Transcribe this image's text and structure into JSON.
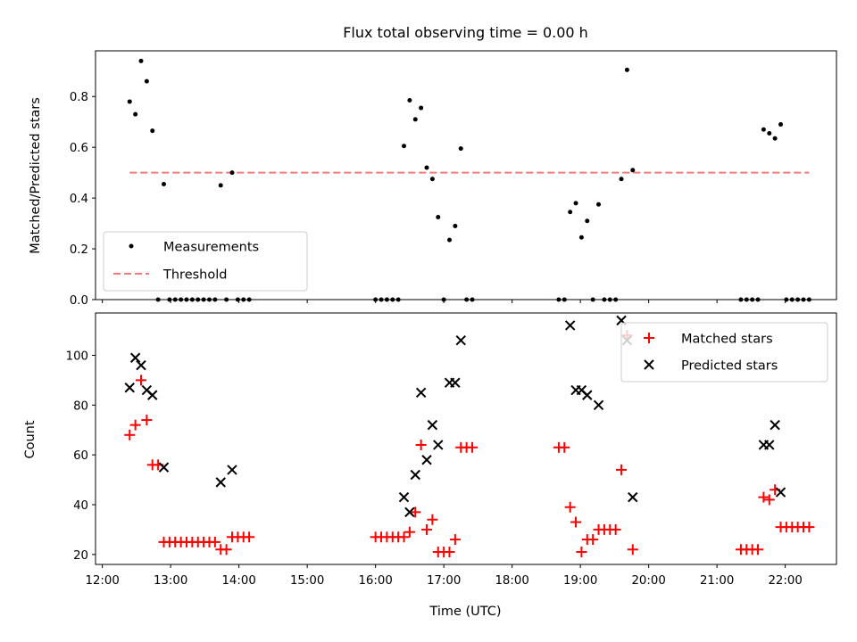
{
  "chart_data": [
    {
      "type": "scatter",
      "title": "Flux total observing time = 0.00 h",
      "xlabel": "",
      "ylabel": "Matched/Predicted stars",
      "xlim": [
        "11:54",
        "22:45"
      ],
      "ylim": [
        0,
        0.98
      ],
      "yticks": [
        0.0,
        0.2,
        0.4,
        0.6,
        0.8
      ],
      "legend_position": "lower-left",
      "series": [
        {
          "name": "Measurements",
          "style": "dot",
          "color": "#000000",
          "points": [
            [
              "12:24",
              0.78
            ],
            [
              "12:29",
              0.73
            ],
            [
              "12:34",
              0.94
            ],
            [
              "12:39",
              0.86
            ],
            [
              "12:44",
              0.665
            ],
            [
              "12:49",
              0.0
            ],
            [
              "12:54",
              0.455
            ],
            [
              "12:59",
              0.0
            ],
            [
              "13:04",
              0.0
            ],
            [
              "13:09",
              0.0
            ],
            [
              "13:14",
              0.0
            ],
            [
              "13:19",
              0.0
            ],
            [
              "13:24",
              0.0
            ],
            [
              "13:29",
              0.0
            ],
            [
              "13:34",
              0.0
            ],
            [
              "13:39",
              0.0
            ],
            [
              "13:44",
              0.45
            ],
            [
              "13:49",
              0.0
            ],
            [
              "13:54",
              0.5
            ],
            [
              "13:59",
              0.0
            ],
            [
              "14:04",
              0.0
            ],
            [
              "14:09",
              0.0
            ],
            [
              "16:00",
              0.0
            ],
            [
              "16:05",
              0.0
            ],
            [
              "16:10",
              0.0
            ],
            [
              "16:15",
              0.0
            ],
            [
              "16:20",
              0.0
            ],
            [
              "16:25",
              0.605
            ],
            [
              "16:30",
              0.785
            ],
            [
              "16:35",
              0.71
            ],
            [
              "16:40",
              0.755
            ],
            [
              "16:45",
              0.52
            ],
            [
              "16:50",
              0.475
            ],
            [
              "16:55",
              0.325
            ],
            [
              "17:00",
              0.0
            ],
            [
              "17:05",
              0.235
            ],
            [
              "17:10",
              0.29
            ],
            [
              "17:15",
              0.595
            ],
            [
              "17:20",
              0.0
            ],
            [
              "17:25",
              0.0
            ],
            [
              "18:41",
              0.0
            ],
            [
              "18:46",
              0.0
            ],
            [
              "18:51",
              0.345
            ],
            [
              "18:56",
              0.38
            ],
            [
              "19:01",
              0.245
            ],
            [
              "19:06",
              0.31
            ],
            [
              "19:11",
              0.0
            ],
            [
              "19:16",
              0.375
            ],
            [
              "19:21",
              0.0
            ],
            [
              "19:26",
              0.0
            ],
            [
              "19:31",
              0.0
            ],
            [
              "19:36",
              0.475
            ],
            [
              "19:41",
              0.905
            ],
            [
              "19:46",
              0.51
            ],
            [
              "21:21",
              0.0
            ],
            [
              "21:26",
              0.0
            ],
            [
              "21:31",
              0.0
            ],
            [
              "21:36",
              0.0
            ],
            [
              "21:41",
              0.67
            ],
            [
              "21:46",
              0.655
            ],
            [
              "21:51",
              0.635
            ],
            [
              "21:56",
              0.69
            ],
            [
              "22:01",
              0.0
            ],
            [
              "22:06",
              0.0
            ],
            [
              "22:11",
              0.0
            ],
            [
              "22:16",
              0.0
            ],
            [
              "22:21",
              0.0
            ]
          ]
        },
        {
          "name": "Threshold",
          "style": "dashed-line",
          "color": "#f47a7a",
          "points": [
            [
              "12:24",
              0.5
            ],
            [
              "22:21",
              0.5
            ]
          ]
        }
      ]
    },
    {
      "type": "scatter",
      "title": "",
      "xlabel": "Time (UTC)",
      "ylabel": "Count",
      "xlim": [
        "11:54",
        "22:45"
      ],
      "ylim": [
        16,
        117
      ],
      "yticks": [
        20,
        40,
        60,
        80,
        100
      ],
      "xticks": [
        "12:00",
        "13:00",
        "14:00",
        "15:00",
        "16:00",
        "17:00",
        "18:00",
        "19:00",
        "20:00",
        "21:00",
        "22:00"
      ],
      "legend_position": "upper-right",
      "series": [
        {
          "name": "Matched stars",
          "marker": "plus",
          "color": "#ff0000",
          "points": [
            [
              "12:24",
              68
            ],
            [
              "12:29",
              72
            ],
            [
              "12:34",
              90
            ],
            [
              "12:39",
              74
            ],
            [
              "12:44",
              56
            ],
            [
              "12:49",
              56
            ],
            [
              "12:54",
              25
            ],
            [
              "12:59",
              25
            ],
            [
              "13:04",
              25
            ],
            [
              "13:09",
              25
            ],
            [
              "13:14",
              25
            ],
            [
              "13:19",
              25
            ],
            [
              "13:24",
              25
            ],
            [
              "13:29",
              25
            ],
            [
              "13:34",
              25
            ],
            [
              "13:39",
              25
            ],
            [
              "13:44",
              22
            ],
            [
              "13:49",
              22
            ],
            [
              "13:54",
              27
            ],
            [
              "13:59",
              27
            ],
            [
              "14:04",
              27
            ],
            [
              "14:09",
              27
            ],
            [
              "16:00",
              27
            ],
            [
              "16:05",
              27
            ],
            [
              "16:10",
              27
            ],
            [
              "16:15",
              27
            ],
            [
              "16:20",
              27
            ],
            [
              "16:25",
              27
            ],
            [
              "16:30",
              29
            ],
            [
              "16:35",
              37
            ],
            [
              "16:40",
              64
            ],
            [
              "16:45",
              30
            ],
            [
              "16:50",
              34
            ],
            [
              "16:55",
              21
            ],
            [
              "17:00",
              21
            ],
            [
              "17:05",
              21
            ],
            [
              "17:10",
              26
            ],
            [
              "17:15",
              63
            ],
            [
              "17:20",
              63
            ],
            [
              "17:25",
              63
            ],
            [
              "18:41",
              63
            ],
            [
              "18:46",
              63
            ],
            [
              "18:51",
              39
            ],
            [
              "18:56",
              33
            ],
            [
              "19:01",
              21
            ],
            [
              "19:06",
              26
            ],
            [
              "19:11",
              26
            ],
            [
              "19:16",
              30
            ],
            [
              "19:21",
              30
            ],
            [
              "19:26",
              30
            ],
            [
              "19:31",
              30
            ],
            [
              "19:36",
              54
            ],
            [
              "19:41",
              108
            ],
            [
              "19:46",
              22
            ],
            [
              "21:21",
              22
            ],
            [
              "21:26",
              22
            ],
            [
              "21:31",
              22
            ],
            [
              "21:36",
              22
            ],
            [
              "21:41",
              43
            ],
            [
              "21:46",
              42
            ],
            [
              "21:51",
              46
            ],
            [
              "21:56",
              31
            ],
            [
              "22:01",
              31
            ],
            [
              "22:06",
              31
            ],
            [
              "22:11",
              31
            ],
            [
              "22:16",
              31
            ],
            [
              "22:21",
              31
            ]
          ]
        },
        {
          "name": "Predicted stars",
          "marker": "x",
          "color": "#000000",
          "points": [
            [
              "12:24",
              87
            ],
            [
              "12:29",
              99
            ],
            [
              "12:34",
              96
            ],
            [
              "12:39",
              86
            ],
            [
              "12:44",
              84
            ],
            [
              "12:54",
              55
            ],
            [
              "13:44",
              49
            ],
            [
              "13:54",
              54
            ],
            [
              "16:25",
              43
            ],
            [
              "16:30",
              37
            ],
            [
              "16:35",
              52
            ],
            [
              "16:40",
              85
            ],
            [
              "16:45",
              58
            ],
            [
              "16:50",
              72
            ],
            [
              "16:55",
              64
            ],
            [
              "17:05",
              89
            ],
            [
              "17:10",
              89
            ],
            [
              "17:15",
              106
            ],
            [
              "18:51",
              112
            ],
            [
              "18:56",
              86
            ],
            [
              "19:01",
              86
            ],
            [
              "19:06",
              84
            ],
            [
              "19:16",
              80
            ],
            [
              "19:36",
              114
            ],
            [
              "19:41",
              106
            ],
            [
              "19:46",
              43
            ],
            [
              "21:41",
              64
            ],
            [
              "21:46",
              64
            ],
            [
              "21:51",
              72
            ],
            [
              "21:56",
              45
            ]
          ]
        }
      ]
    }
  ]
}
